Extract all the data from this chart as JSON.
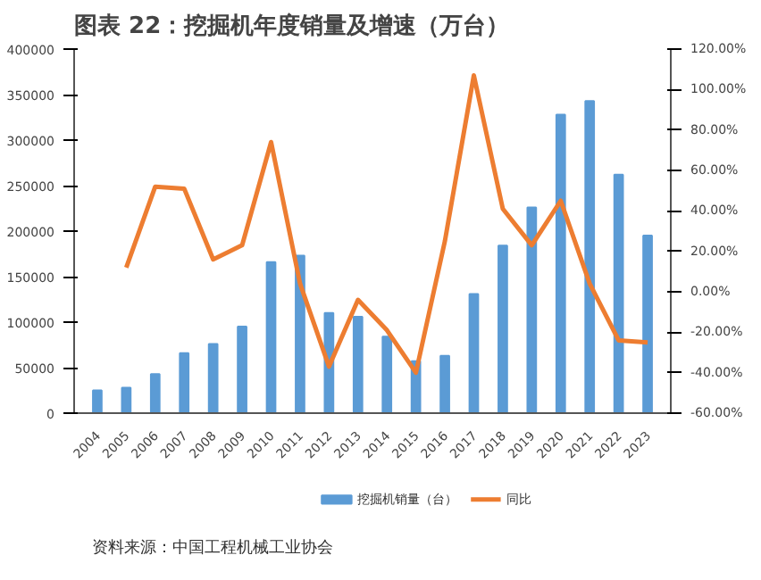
{
  "chart_data": {
    "type": "bar",
    "title": "图表 22：挖掘机年度销量及增速（万台）",
    "categories": [
      "2004",
      "2005",
      "2006",
      "2007",
      "2008",
      "2009",
      "2010",
      "2011",
      "2012",
      "2013",
      "2014",
      "2015",
      "2016",
      "2017",
      "2018",
      "2019",
      "2020",
      "2021",
      "2022",
      "2023"
    ],
    "series": [
      {
        "name": "挖掘机销量（台）",
        "color": "#5b9bd5",
        "values": [
          25000,
          28000,
          43000,
          66000,
          76000,
          95000,
          166000,
          173000,
          110000,
          106000,
          84000,
          57000,
          63000,
          131000,
          184000,
          226000,
          328000,
          343000,
          262000,
          195000
        ]
      },
      {
        "name": "同比",
        "type": "line",
        "axis": "y2",
        "color": "#ed7d31",
        "values": [
          null,
          12,
          52,
          51,
          16,
          23,
          74,
          4,
          -37,
          -4,
          -19,
          -40,
          25,
          107,
          41,
          23,
          45,
          4,
          -24,
          -25
        ]
      }
    ],
    "ylim": [
      0,
      400000
    ],
    "yticks": [
      0,
      50000,
      100000,
      150000,
      200000,
      250000,
      300000,
      350000,
      400000
    ],
    "y2lim": [
      -60,
      120
    ],
    "y2ticks": [
      {
        "value": -60,
        "label": "-60.00%"
      },
      {
        "value": -40,
        "label": "-40.00%"
      },
      {
        "value": -20,
        "label": "-20.00%"
      },
      {
        "value": 0,
        "label": "0.00%"
      },
      {
        "value": 20,
        "label": "20.00%"
      },
      {
        "value": 40,
        "label": "40.00%"
      },
      {
        "value": 60,
        "label": "60.00%"
      },
      {
        "value": 80,
        "label": "80.00%"
      },
      {
        "value": 100,
        "label": "100.00%"
      },
      {
        "value": 120,
        "label": "120.00%"
      }
    ],
    "legend": "bottom",
    "grid": false,
    "annotations": [
      "资料来源：中国工程机械工业协会"
    ]
  }
}
